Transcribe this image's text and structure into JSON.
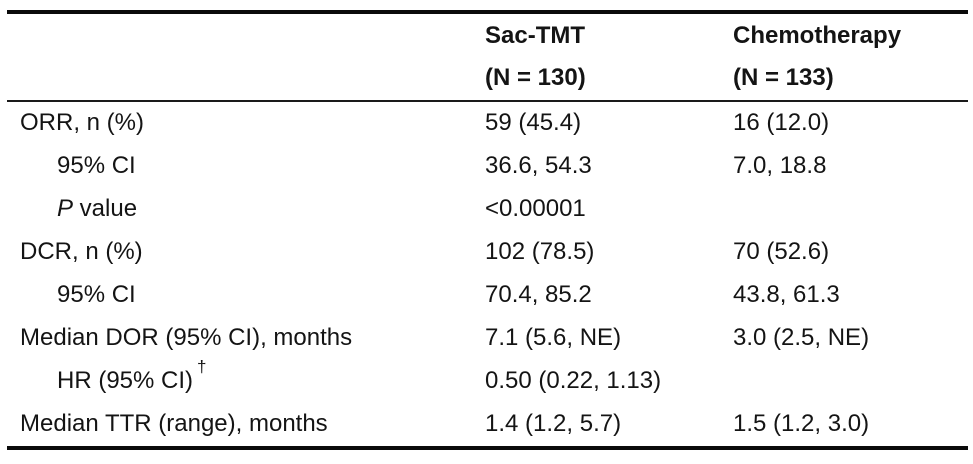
{
  "table": {
    "header": {
      "sac_tmt": {
        "line1": "Sac-TMT",
        "line2": "(N = 130)"
      },
      "chemotherapy": {
        "line1": "Chemotherapy",
        "line2": "(N = 133)"
      }
    },
    "rows": [
      {
        "label": "ORR, n (%)",
        "indent": false,
        "sac_tmt": "59 (45.4)",
        "chemotherapy": "16 (12.0)"
      },
      {
        "label": "95% CI",
        "indent": true,
        "sac_tmt": "36.6, 54.3",
        "chemotherapy": "7.0, 18.8"
      },
      {
        "label_italic_prefix": "P",
        "label": " value",
        "indent": true,
        "sac_tmt": "<0.00001",
        "chemotherapy": ""
      },
      {
        "label": "DCR, n (%)",
        "indent": false,
        "sac_tmt": "102 (78.5)",
        "chemotherapy": "70 (52.6)"
      },
      {
        "label": "95% CI",
        "indent": true,
        "sac_tmt": "70.4, 85.2",
        "chemotherapy": "43.8, 61.3"
      },
      {
        "label": "Median DOR (95% CI), months",
        "indent": false,
        "sac_tmt": "7.1 (5.6, NE)",
        "chemotherapy": "3.0 (2.5, NE)"
      },
      {
        "label": "HR (95% CI)",
        "label_sup": "†",
        "indent": true,
        "sac_tmt": "0.50 (0.22, 1.13)",
        "chemotherapy": ""
      },
      {
        "label": "Median TTR (range), months",
        "indent": false,
        "sac_tmt": "1.4 (1.2, 5.7)",
        "chemotherapy": "1.5 (1.2, 3.0)"
      }
    ]
  },
  "chart_data": {
    "type": "table",
    "columns": [
      "",
      "Sac-TMT (N = 130)",
      "Chemotherapy (N = 133)"
    ],
    "rows": [
      [
        "ORR, n (%)",
        "59 (45.4)",
        "16 (12.0)"
      ],
      [
        "95% CI",
        "36.6, 54.3",
        "7.0, 18.8"
      ],
      [
        "P value",
        "<0.00001",
        ""
      ],
      [
        "DCR, n (%)",
        "102 (78.5)",
        "70 (52.6)"
      ],
      [
        "95% CI",
        "70.4, 85.2",
        "43.8, 61.3"
      ],
      [
        "Median DOR (95% CI), months",
        "7.1 (5.6, NE)",
        "3.0 (2.5, NE)"
      ],
      [
        "HR (95% CI)†",
        "0.50 (0.22, 1.13)",
        ""
      ],
      [
        "Median TTR (range), months",
        "1.4 (1.2, 5.7)",
        "1.5 (1.2, 3.0)"
      ]
    ]
  }
}
